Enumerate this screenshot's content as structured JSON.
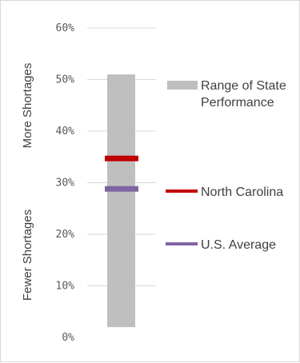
{
  "chart_data": {
    "type": "bar",
    "title": "",
    "ylim": [
      0,
      60
    ],
    "yticks": [
      0,
      10,
      20,
      30,
      40,
      50,
      60
    ],
    "ytick_labels": [
      "0%",
      "10%",
      "20%",
      "30%",
      "40%",
      "50%",
      "60%"
    ],
    "grid": true,
    "range_bar": {
      "low": 2.0,
      "high": 51.0,
      "color": "#bfbfbf"
    },
    "markers": [
      {
        "name": "North Carolina",
        "value": 34.7,
        "color": "#c00000"
      },
      {
        "name": "U.S. Average",
        "value": 28.8,
        "color": "#8064a2"
      }
    ],
    "side_labels": {
      "upper": "More Shortages",
      "lower": "Fewer Shortages"
    },
    "legend": {
      "placement": "right",
      "range_label_lines": [
        "Range of State",
        "Performance"
      ],
      "north_carolina": "North Carolina",
      "us_average": "U.S. Average"
    }
  }
}
